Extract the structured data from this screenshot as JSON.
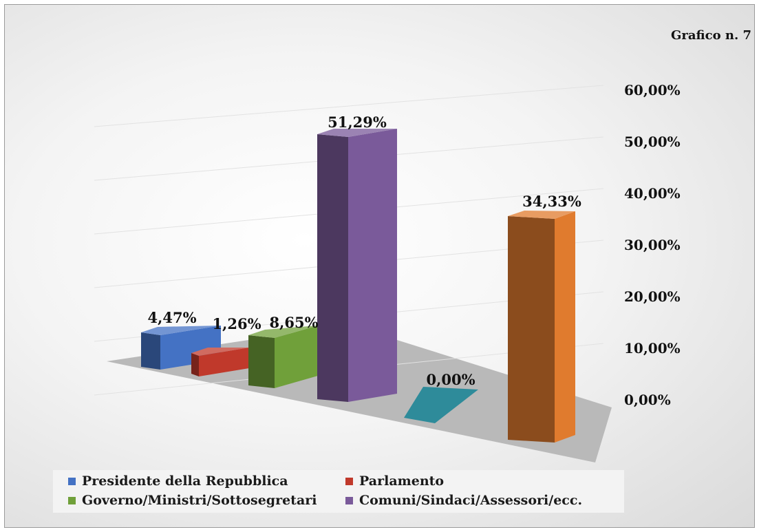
{
  "chart_title": "Grafico n. 7",
  "chart_data": {
    "type": "bar",
    "title": "Grafico n. 7",
    "categories": [
      "Presidente della Repubblica",
      "Parlamento",
      "Governo/Ministri/Sottosegretari",
      "Comuni/Sindaci/Assessori/ecc.",
      "",
      ""
    ],
    "values": [
      4.47,
      1.26,
      8.65,
      51.29,
      0.0,
      34.33
    ],
    "data_labels": [
      "4,47%",
      "1,26%",
      "8,65%",
      "51,29%",
      "0,00%",
      "34,33%"
    ],
    "colors": [
      "#4472c4",
      "#c0392b",
      "#70a03a",
      "#7a5a9a",
      "#2e8b9a",
      "#e07b2e"
    ],
    "ylim": [
      0,
      60
    ],
    "y_ticks": [
      "0,00%",
      "10,00%",
      "20,00%",
      "30,00%",
      "40,00%",
      "50,00%",
      "60,00%"
    ],
    "grid": true,
    "legend_position": "bottom"
  },
  "legend": [
    {
      "label": "Presidente della Repubblica",
      "color": "#4472c4"
    },
    {
      "label": "Parlamento",
      "color": "#c0392b"
    },
    {
      "label": "Governo/Ministri/Sottosegretari",
      "color": "#70a03a"
    },
    {
      "label": "Comuni/Sindaci/Assessori/ecc.",
      "color": "#7a5a9a"
    }
  ]
}
